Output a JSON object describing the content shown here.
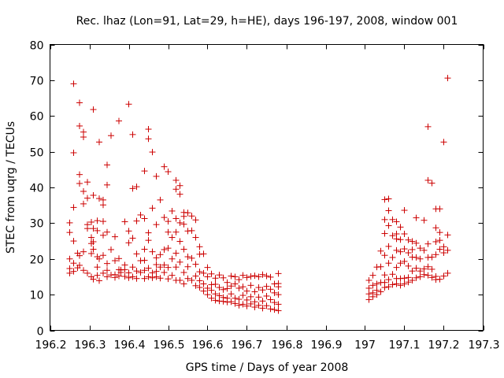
{
  "chart_data": {
    "type": "scatter",
    "title": "Rec. lhaz (Lon=91, Lat=29, h=HE), days 196-197, 2008, window 001",
    "xlabel": "GPS time / Days of year 2008",
    "ylabel": "STEC from uqrg / TECUs",
    "xlim": [
      196.2,
      197.3
    ],
    "ylim": [
      0,
      80
    ],
    "xticks": [
      196.2,
      196.3,
      196.4,
      196.5,
      196.6,
      196.7,
      196.8,
      196.9,
      197,
      197.1,
      197.2,
      197.3
    ],
    "xtick_labels": [
      "196.2",
      "196.3",
      "196.4",
      "196.5",
      "196.6",
      "196.7",
      "196.8",
      "196.9",
      "197",
      "197.1",
      "197.2",
      "197.3"
    ],
    "yticks": [
      0,
      10,
      20,
      30,
      40,
      50,
      60,
      70,
      80
    ],
    "ytick_labels": [
      "0",
      "10",
      "20",
      "30",
      "40",
      "50",
      "60",
      "70",
      "80"
    ],
    "grid": false,
    "marker": "+",
    "color": "#cc0000",
    "points": [
      [
        196.25,
        30.1
      ],
      [
        196.25,
        27.4
      ],
      [
        196.25,
        20.0
      ],
      [
        196.25,
        17.3
      ],
      [
        196.25,
        16.0
      ],
      [
        196.26,
        69.0
      ],
      [
        196.26,
        49.7
      ],
      [
        196.26,
        34.4
      ],
      [
        196.26,
        25.0
      ],
      [
        196.26,
        18.8
      ],
      [
        196.26,
        16.5
      ],
      [
        196.27,
        21.6
      ],
      [
        196.27,
        17.5
      ],
      [
        196.275,
        63.7
      ],
      [
        196.275,
        57.2
      ],
      [
        196.275,
        43.6
      ],
      [
        196.275,
        41.1
      ],
      [
        196.275,
        20.9
      ],
      [
        196.275,
        18.2
      ],
      [
        196.285,
        55.5
      ],
      [
        196.285,
        54.1
      ],
      [
        196.285,
        38.9
      ],
      [
        196.285,
        35.4
      ],
      [
        196.285,
        22.0
      ],
      [
        196.285,
        16.8
      ],
      [
        196.295,
        41.5
      ],
      [
        196.295,
        37.0
      ],
      [
        196.295,
        29.6
      ],
      [
        196.295,
        28.5
      ],
      [
        196.295,
        16.0
      ],
      [
        196.305,
        30.3
      ],
      [
        196.305,
        26.0
      ],
      [
        196.305,
        24.3
      ],
      [
        196.305,
        21.5
      ],
      [
        196.305,
        15.0
      ],
      [
        196.31,
        61.8
      ],
      [
        196.31,
        37.8
      ],
      [
        196.31,
        28.5
      ],
      [
        196.31,
        24.8
      ],
      [
        196.31,
        22.7
      ],
      [
        196.31,
        14.3
      ],
      [
        196.32,
        30.7
      ],
      [
        196.32,
        27.9
      ],
      [
        196.32,
        20.6
      ],
      [
        196.32,
        17.7
      ],
      [
        196.32,
        15.4
      ],
      [
        196.325,
        52.7
      ],
      [
        196.325,
        36.9
      ],
      [
        196.325,
        20.0
      ],
      [
        196.325,
        13.9
      ],
      [
        196.335,
        36.5
      ],
      [
        196.335,
        35.1
      ],
      [
        196.335,
        30.5
      ],
      [
        196.335,
        26.6
      ],
      [
        196.335,
        21.0
      ],
      [
        196.335,
        16.0
      ],
      [
        196.345,
        46.3
      ],
      [
        196.345,
        40.7
      ],
      [
        196.345,
        27.5
      ],
      [
        196.345,
        18.7
      ],
      [
        196.345,
        16.8
      ],
      [
        196.345,
        15.0
      ],
      [
        196.355,
        54.5
      ],
      [
        196.355,
        22.6
      ],
      [
        196.355,
        15.5
      ],
      [
        196.365,
        26.2
      ],
      [
        196.365,
        19.5
      ],
      [
        196.365,
        15.6
      ],
      [
        196.365,
        14.8
      ],
      [
        196.375,
        58.6
      ],
      [
        196.375,
        20.1
      ],
      [
        196.375,
        17.0
      ],
      [
        196.375,
        15.2
      ],
      [
        196.38,
        16.9
      ],
      [
        196.38,
        16.2
      ],
      [
        196.39,
        30.4
      ],
      [
        196.39,
        18.3
      ],
      [
        196.39,
        17.0
      ],
      [
        196.39,
        15.1
      ],
      [
        196.4,
        63.3
      ],
      [
        196.4,
        27.8
      ],
      [
        196.4,
        24.5
      ],
      [
        196.4,
        16.1
      ],
      [
        196.4,
        14.7
      ],
      [
        196.41,
        54.8
      ],
      [
        196.41,
        39.7
      ],
      [
        196.41,
        25.8
      ],
      [
        196.41,
        17.7
      ],
      [
        196.41,
        15.0
      ],
      [
        196.42,
        40.2
      ],
      [
        196.42,
        30.6
      ],
      [
        196.42,
        21.4
      ],
      [
        196.42,
        16.6
      ],
      [
        196.42,
        14.5
      ],
      [
        196.43,
        32.3
      ],
      [
        196.43,
        19.5
      ],
      [
        196.43,
        16.2
      ],
      [
        196.44,
        44.6
      ],
      [
        196.44,
        31.3
      ],
      [
        196.44,
        22.7
      ],
      [
        196.44,
        19.6
      ],
      [
        196.44,
        16.8
      ],
      [
        196.44,
        14.5
      ],
      [
        196.45,
        56.3
      ],
      [
        196.45,
        53.6
      ],
      [
        196.45,
        27.3
      ],
      [
        196.45,
        25.2
      ],
      [
        196.45,
        17.4
      ],
      [
        196.45,
        15.0
      ],
      [
        196.46,
        49.9
      ],
      [
        196.46,
        34.2
      ],
      [
        196.46,
        22.0
      ],
      [
        196.46,
        16.1
      ],
      [
        196.46,
        14.7
      ],
      [
        196.47,
        43.1
      ],
      [
        196.47,
        29.6
      ],
      [
        196.47,
        20.3
      ],
      [
        196.47,
        18.4
      ],
      [
        196.47,
        16.5
      ],
      [
        196.47,
        15.0
      ],
      [
        196.48,
        36.5
      ],
      [
        196.48,
        21.2
      ],
      [
        196.48,
        17.7
      ],
      [
        196.48,
        14.6
      ],
      [
        196.49,
        45.8
      ],
      [
        196.49,
        31.6
      ],
      [
        196.49,
        22.6
      ],
      [
        196.49,
        18.3
      ],
      [
        196.49,
        16.2
      ],
      [
        196.5,
        44.4
      ],
      [
        196.5,
        30.5
      ],
      [
        196.5,
        27.5
      ],
      [
        196.5,
        23.0
      ],
      [
        196.5,
        17.6
      ],
      [
        196.5,
        14.4
      ],
      [
        196.51,
        33.4
      ],
      [
        196.51,
        26.0
      ],
      [
        196.51,
        20.0
      ],
      [
        196.51,
        15.4
      ],
      [
        196.52,
        42.0
      ],
      [
        196.52,
        39.5
      ],
      [
        196.52,
        31.3
      ],
      [
        196.52,
        27.5
      ],
      [
        196.52,
        21.6
      ],
      [
        196.52,
        17.7
      ],
      [
        196.52,
        14.0
      ],
      [
        196.53,
        40.5
      ],
      [
        196.53,
        38.1
      ],
      [
        196.53,
        30.1
      ],
      [
        196.53,
        24.9
      ],
      [
        196.53,
        19.1
      ],
      [
        196.53,
        14.0
      ],
      [
        196.54,
        33.0
      ],
      [
        196.54,
        31.9
      ],
      [
        196.54,
        29.7
      ],
      [
        196.54,
        22.7
      ],
      [
        196.54,
        16.2
      ],
      [
        196.54,
        13.0
      ],
      [
        196.55,
        32.9
      ],
      [
        196.55,
        27.8
      ],
      [
        196.55,
        20.6
      ],
      [
        196.55,
        17.8
      ],
      [
        196.55,
        14.5
      ],
      [
        196.56,
        32.0
      ],
      [
        196.56,
        27.9
      ],
      [
        196.56,
        20.2
      ],
      [
        196.56,
        14.0
      ],
      [
        196.57,
        30.9
      ],
      [
        196.57,
        26.0
      ],
      [
        196.57,
        18.5
      ],
      [
        196.57,
        15.2
      ],
      [
        196.57,
        12.5
      ],
      [
        196.58,
        23.4
      ],
      [
        196.58,
        21.3
      ],
      [
        196.58,
        16.4
      ],
      [
        196.58,
        13.9
      ],
      [
        196.58,
        12.0
      ],
      [
        196.59,
        21.4
      ],
      [
        196.59,
        16.0
      ],
      [
        196.59,
        13.0
      ],
      [
        196.59,
        11.0
      ],
      [
        196.6,
        17.6
      ],
      [
        196.6,
        15.0
      ],
      [
        196.6,
        11.8
      ],
      [
        196.6,
        10.0
      ],
      [
        196.61,
        15.8
      ],
      [
        196.61,
        12.8
      ],
      [
        196.61,
        11.2
      ],
      [
        196.61,
        9.0
      ],
      [
        196.62,
        14.6
      ],
      [
        196.62,
        12.9
      ],
      [
        196.62,
        10.2
      ],
      [
        196.62,
        8.4
      ],
      [
        196.63,
        15.5
      ],
      [
        196.63,
        12.0
      ],
      [
        196.63,
        9.7
      ],
      [
        196.63,
        8.2
      ],
      [
        196.64,
        14.7
      ],
      [
        196.64,
        11.4
      ],
      [
        196.64,
        9.2
      ],
      [
        196.64,
        8.1
      ],
      [
        196.65,
        13.4
      ],
      [
        196.65,
        11.7
      ],
      [
        196.65,
        9.0
      ],
      [
        196.65,
        7.9
      ],
      [
        196.66,
        15.2
      ],
      [
        196.66,
        12.4
      ],
      [
        196.66,
        10.2
      ],
      [
        196.66,
        8.0
      ],
      [
        196.67,
        15.0
      ],
      [
        196.67,
        13.0
      ],
      [
        196.67,
        9.0
      ],
      [
        196.67,
        7.5
      ],
      [
        196.68,
        14.2
      ],
      [
        196.68,
        11.8
      ],
      [
        196.68,
        8.7
      ],
      [
        196.68,
        7.0
      ],
      [
        196.69,
        15.4
      ],
      [
        196.69,
        12.2
      ],
      [
        196.69,
        9.8
      ],
      [
        196.69,
        7.3
      ],
      [
        196.7,
        14.8
      ],
      [
        196.7,
        11.0
      ],
      [
        196.7,
        8.5
      ],
      [
        196.7,
        6.8
      ],
      [
        196.71,
        15.1
      ],
      [
        196.71,
        12.6
      ],
      [
        196.71,
        9.4
      ],
      [
        196.71,
        7.4
      ],
      [
        196.72,
        15.3
      ],
      [
        196.72,
        10.8
      ],
      [
        196.72,
        8.0
      ],
      [
        196.72,
        6.5
      ],
      [
        196.73,
        15.0
      ],
      [
        196.73,
        12.0
      ],
      [
        196.73,
        9.3
      ],
      [
        196.73,
        7.0
      ],
      [
        196.74,
        15.6
      ],
      [
        196.74,
        11.3
      ],
      [
        196.74,
        8.2
      ],
      [
        196.74,
        6.2
      ],
      [
        196.75,
        15.2
      ],
      [
        196.75,
        12.3
      ],
      [
        196.75,
        9.6
      ],
      [
        196.75,
        6.9
      ],
      [
        196.76,
        14.9
      ],
      [
        196.76,
        11.5
      ],
      [
        196.76,
        8.6
      ],
      [
        196.76,
        6.0
      ],
      [
        196.77,
        13.0
      ],
      [
        196.77,
        10.5
      ],
      [
        196.77,
        7.8
      ],
      [
        196.77,
        5.8
      ],
      [
        196.78,
        15.9
      ],
      [
        196.78,
        13.1
      ],
      [
        196.78,
        12.2
      ],
      [
        196.78,
        10.0
      ],
      [
        196.78,
        7.3
      ],
      [
        196.78,
        5.5
      ],
      [
        197.01,
        14.0
      ],
      [
        197.01,
        11.8
      ],
      [
        197.01,
        10.2
      ],
      [
        197.01,
        8.6
      ],
      [
        197.02,
        15.4
      ],
      [
        197.02,
        12.6
      ],
      [
        197.02,
        10.5
      ],
      [
        197.02,
        9.4
      ],
      [
        197.03,
        17.7
      ],
      [
        197.03,
        13.0
      ],
      [
        197.03,
        11.2
      ],
      [
        197.03,
        10.0
      ],
      [
        197.04,
        22.2
      ],
      [
        197.04,
        17.8
      ],
      [
        197.04,
        13.4
      ],
      [
        197.04,
        10.8
      ],
      [
        197.05,
        36.6
      ],
      [
        197.05,
        31.0
      ],
      [
        197.05,
        27.1
      ],
      [
        197.05,
        21.0
      ],
      [
        197.05,
        15.5
      ],
      [
        197.05,
        13.4
      ],
      [
        197.05,
        12.0
      ],
      [
        197.06,
        36.8
      ],
      [
        197.06,
        33.5
      ],
      [
        197.06,
        29.3
      ],
      [
        197.06,
        23.5
      ],
      [
        197.06,
        18.8
      ],
      [
        197.06,
        14.2
      ],
      [
        197.06,
        12.2
      ],
      [
        197.07,
        31.0
      ],
      [
        197.07,
        26.5
      ],
      [
        197.07,
        20.4
      ],
      [
        197.07,
        15.7
      ],
      [
        197.07,
        12.8
      ],
      [
        197.08,
        30.4
      ],
      [
        197.08,
        27.0
      ],
      [
        197.08,
        25.6
      ],
      [
        197.08,
        22.4
      ],
      [
        197.08,
        17.6
      ],
      [
        197.08,
        14.5
      ],
      [
        197.08,
        13.0
      ],
      [
        197.09,
        28.9
      ],
      [
        197.09,
        25.4
      ],
      [
        197.09,
        22.0
      ],
      [
        197.09,
        18.8
      ],
      [
        197.09,
        14.5
      ],
      [
        197.09,
        12.6
      ],
      [
        197.1,
        33.6
      ],
      [
        197.1,
        27.0
      ],
      [
        197.1,
        22.8
      ],
      [
        197.1,
        19.3
      ],
      [
        197.1,
        14.6
      ],
      [
        197.1,
        13.0
      ],
      [
        197.11,
        25.3
      ],
      [
        197.11,
        21.7
      ],
      [
        197.11,
        18.0
      ],
      [
        197.11,
        14.8
      ],
      [
        197.11,
        13.5
      ],
      [
        197.12,
        24.9
      ],
      [
        197.12,
        22.6
      ],
      [
        197.12,
        20.5
      ],
      [
        197.12,
        16.6
      ],
      [
        197.12,
        14.0
      ],
      [
        197.13,
        31.5
      ],
      [
        197.13,
        24.4
      ],
      [
        197.13,
        20.4
      ],
      [
        197.13,
        17.4
      ],
      [
        197.13,
        14.7
      ],
      [
        197.14,
        23.0
      ],
      [
        197.14,
        20.0
      ],
      [
        197.14,
        16.6
      ],
      [
        197.14,
        15.0
      ],
      [
        197.15,
        30.8
      ],
      [
        197.15,
        22.4
      ],
      [
        197.15,
        17.2
      ],
      [
        197.15,
        15.6
      ],
      [
        197.16,
        57.0
      ],
      [
        197.16,
        42.0
      ],
      [
        197.16,
        24.2
      ],
      [
        197.16,
        20.4
      ],
      [
        197.16,
        17.8
      ],
      [
        197.16,
        15.4
      ],
      [
        197.17,
        41.2
      ],
      [
        197.17,
        20.5
      ],
      [
        197.17,
        17.1
      ],
      [
        197.17,
        14.8
      ],
      [
        197.18,
        34.0
      ],
      [
        197.18,
        28.7
      ],
      [
        197.18,
        24.8
      ],
      [
        197.18,
        21.2
      ],
      [
        197.18,
        15.1
      ],
      [
        197.18,
        14.2
      ],
      [
        197.19,
        34.0
      ],
      [
        197.19,
        27.4
      ],
      [
        197.19,
        25.2
      ],
      [
        197.19,
        22.7
      ],
      [
        197.19,
        14.3
      ],
      [
        197.2,
        52.7
      ],
      [
        197.2,
        23.4
      ],
      [
        197.2,
        21.7
      ],
      [
        197.2,
        15.2
      ],
      [
        197.21,
        70.6
      ],
      [
        197.21,
        26.7
      ],
      [
        197.21,
        22.4
      ],
      [
        197.21,
        16.0
      ]
    ]
  }
}
